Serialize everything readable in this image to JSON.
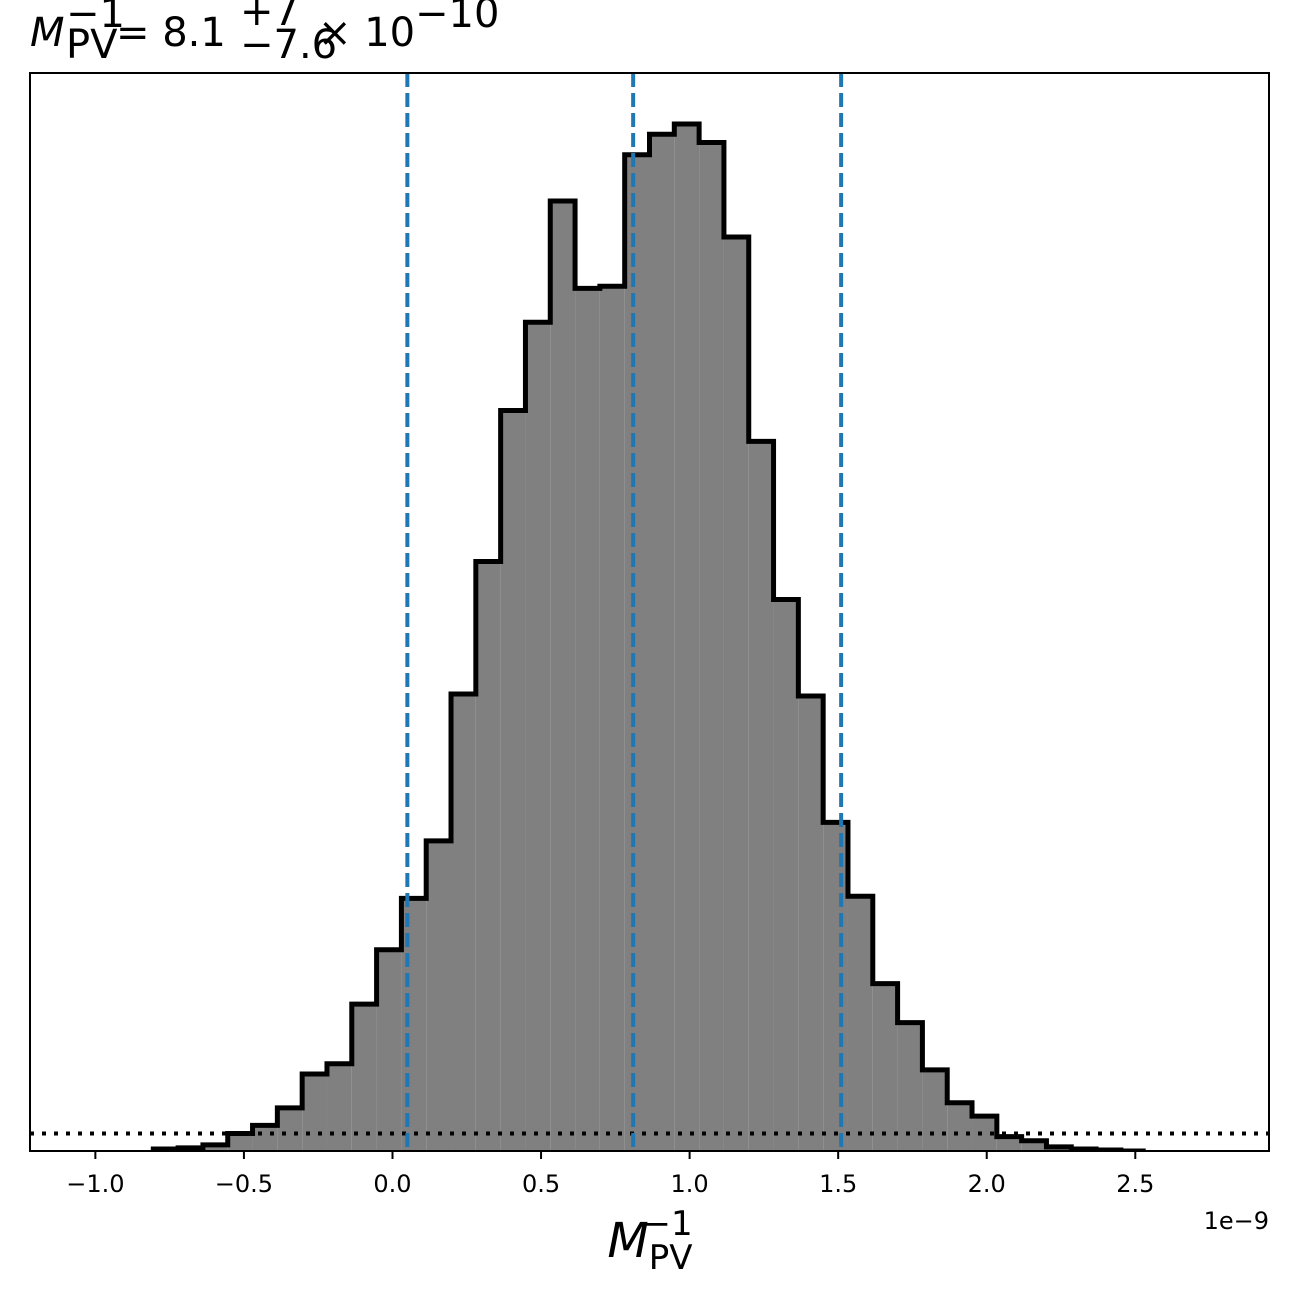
{
  "chart_data": {
    "type": "histogram",
    "title": {
      "symbol": "M",
      "subscript": "PV",
      "superscript": "−1",
      "equals": " = ",
      "value": "8.1",
      "err_plus": "+7",
      "err_minus": "−7.6",
      "times": " × 10",
      "exponent": "−10"
    },
    "xlabel": {
      "symbol": "M",
      "subscript": "PV",
      "superscript": "−1"
    },
    "offset_text": "1e−9",
    "ylabel": "",
    "xlim": [
      -1.22e-09,
      2.95e-09
    ],
    "ylim": [
      0,
      1.0
    ],
    "x_ticks": [
      {
        "value": -1e-09,
        "label": "−1.0"
      },
      {
        "value": -5e-10,
        "label": "−0.5"
      },
      {
        "value": 0.0,
        "label": "0.0"
      },
      {
        "value": 5e-10,
        "label": "0.5"
      },
      {
        "value": 1e-09,
        "label": "1.0"
      },
      {
        "value": 1.5e-09,
        "label": "1.5"
      },
      {
        "value": 2e-09,
        "label": "2.0"
      },
      {
        "value": 2.5e-09,
        "label": "2.5"
      }
    ],
    "y_ticks": [],
    "grid": false,
    "bin_edges": [
      -8.05e-10,
      -7.215e-10,
      -6.38e-10,
      -5.545e-10,
      -4.71e-10,
      -3.875e-10,
      -3.04e-10,
      -2.205e-10,
      -1.37e-10,
      -5.35e-11,
      3e-11,
      1.135e-10,
      1.97e-10,
      2.805e-10,
      3.64e-10,
      4.475e-10,
      5.31e-10,
      6.145e-10,
      6.98e-10,
      7.815e-10,
      8.65e-10,
      9.485e-10,
      1.032e-09,
      1.1155e-09,
      1.199e-09,
      1.2825e-09,
      1.366e-09,
      1.4495e-09,
      1.533e-09,
      1.6165e-09,
      1.7e-09,
      1.7835e-09,
      1.867e-09,
      1.9505e-09,
      2.034e-09,
      2.1175e-09,
      2.201e-09,
      2.2845e-09,
      2.368e-09,
      2.4515e-09,
      2.535e-09
    ],
    "counts": [
      0.002,
      0.003,
      0.006,
      0.017,
      0.025,
      0.042,
      0.075,
      0.085,
      0.143,
      0.196,
      0.246,
      0.302,
      0.445,
      0.574,
      0.721,
      0.807,
      0.925,
      0.84,
      0.842,
      0.97,
      0.99,
      1.0,
      0.982,
      0.89,
      0.691,
      0.537,
      0.443,
      0.32,
      0.248,
      0.163,
      0.125,
      0.079,
      0.047,
      0.034,
      0.014,
      0.01,
      0.004,
      0.002,
      0.001,
      0.0
    ],
    "fill_color": "#808080",
    "edge_color": "#000000",
    "quantile_lines": {
      "values": [
        5e-11,
        8.1e-10,
        1.51e-09
      ],
      "color": "#1f77b4",
      "style": "dashed"
    },
    "reference_line": {
      "y": 0.017,
      "color": "#000000",
      "style": "dotted"
    }
  }
}
